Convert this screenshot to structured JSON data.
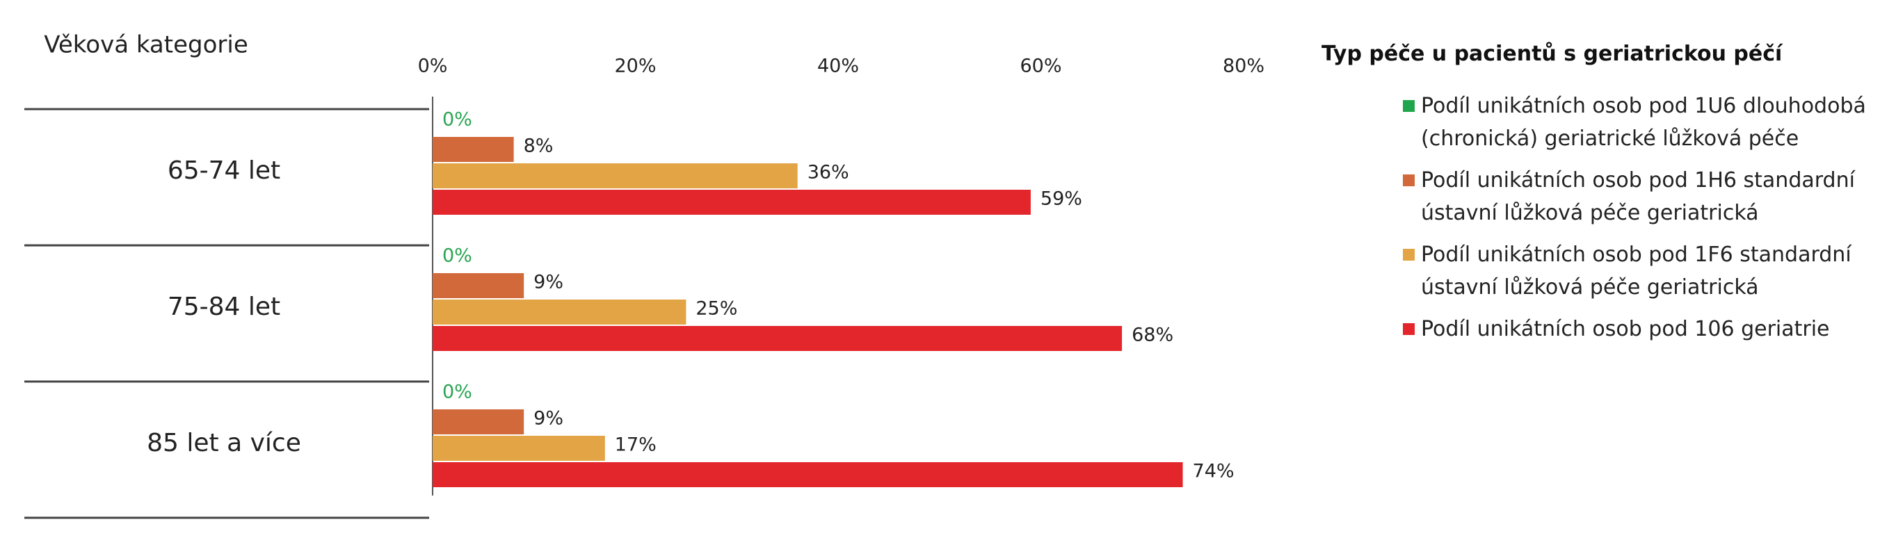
{
  "chart_data": {
    "type": "bar",
    "orientation": "horizontal",
    "category_header": "Věková kategorie",
    "legend_title": "Typ péče u pacientů s geriatrickou péčí",
    "categories": [
      "65-74 let",
      "75-84 let",
      "85 let a více"
    ],
    "xlim": [
      0,
      80
    ],
    "xticks": [
      {
        "value": 0,
        "label": "0%"
      },
      {
        "value": 20,
        "label": "20%"
      },
      {
        "value": 40,
        "label": "40%"
      },
      {
        "value": 60,
        "label": "60%"
      },
      {
        "value": 80,
        "label": "80%"
      }
    ],
    "grid": false,
    "legend_position": "right",
    "series": [
      {
        "name": "Podíl unikátních osob pod 1U6 dlouhodobá (chronická) geriatrické lůžková péče",
        "color": "#1fa54c",
        "label_color": "#2aa552",
        "values": [
          0,
          0,
          0
        ],
        "value_labels": [
          "0%",
          "0%",
          "0%"
        ]
      },
      {
        "name": "Podíl unikátních osob pod 1H6 standardní ústavní lůžková péče geriatrická",
        "color": "#d2693a",
        "label_color": "#222222",
        "values": [
          8,
          9,
          9
        ],
        "value_labels": [
          "8%",
          "9%",
          "9%"
        ]
      },
      {
        "name": "Podíl unikátních osob pod 1F6 standardní ústavní lůžková péče geriatrická",
        "color": "#e2a444",
        "label_color": "#222222",
        "values": [
          36,
          25,
          17
        ],
        "value_labels": [
          "36%",
          "25%",
          "17%"
        ]
      },
      {
        "name": "Podíl unikátních osob pod 106 geriatrie",
        "color": "#e3262b",
        "label_color": "#222222",
        "values": [
          59,
          68,
          74
        ],
        "value_labels": [
          "59%",
          "68%",
          "74%"
        ]
      }
    ]
  }
}
